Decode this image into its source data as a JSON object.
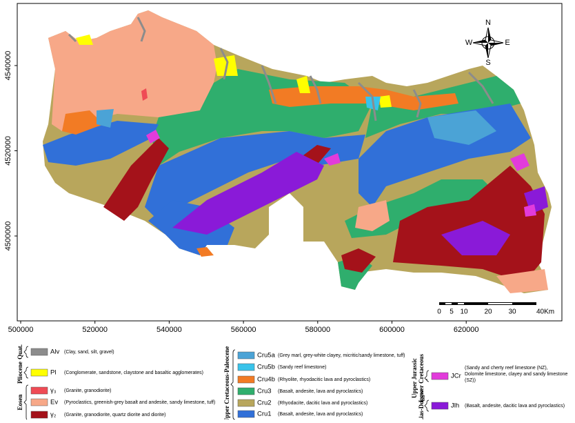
{
  "map": {
    "x_ticks": [
      500000,
      520000,
      540000,
      560000,
      580000,
      600000,
      620000
    ],
    "y_ticks": [
      4540000,
      4520000,
      4500000
    ],
    "compass": {
      "n": "N",
      "e": "E",
      "s": "S",
      "w": "W"
    },
    "scale_bar": {
      "labels": [
        "0",
        "5",
        "10",
        "20",
        "30",
        "40Km"
      ]
    }
  },
  "legend": {
    "groups": [
      {
        "label": "Quat.",
        "units": [
          {
            "code": "Alv",
            "color": "#8c8c8c",
            "description": "(Clay, sand, silt, gravel)"
          }
        ]
      },
      {
        "label": "Pliocene",
        "units": [
          {
            "code": "Pl",
            "color": "#ffff00",
            "description": "(Conglomerate, sandstone, claystone and basaltic agglomerates)"
          }
        ]
      },
      {
        "label": "Eosen",
        "units": [
          {
            "code": "γ₃",
            "color": "#ef4b55",
            "description": "(Granite, granodiorite)"
          },
          {
            "code": "Ev",
            "color": "#f7a888",
            "description": "(Pyroclastics, greenish-grey basalt and andesite, sandy limestone, tuff)"
          },
          {
            "code": "γ₂",
            "color": "#a4121a",
            "description": "(Granite, granodiorite, quartz diorite and diorite)"
          }
        ]
      },
      {
        "label": "Upper Cretaceous-Paleocene",
        "units": [
          {
            "code": "Cru5a",
            "color": "#4ba3d6",
            "description": "(Grey marl, grey-white clayey, micritic/sandy limestone, tuff)"
          },
          {
            "code": "Cru5b",
            "color": "#38c3ea",
            "description": "(Sandy reef limestone)"
          },
          {
            "code": "Cru4b",
            "color": "#f27b24",
            "description": "(Rhyolite, rhyodacitic lava and pyroclastics)"
          },
          {
            "code": "Cru3",
            "color": "#2fae6d",
            "description": "(Basalt, andesite, lava and pyroclastics)"
          },
          {
            "code": "Cru2",
            "color": "#b8a65c",
            "description": "(Rhyodacite, dacitic lava and pyroclastics)"
          },
          {
            "code": "Cru1",
            "color": "#3170d8",
            "description": "(Basalt, andesite, lava and pyroclastics)"
          }
        ]
      },
      {
        "label": [
          "Upper Jurassic",
          "Lower Cretaceous"
        ],
        "units": [
          {
            "code": "JCr",
            "color": "#e23bdb",
            "description": "(Sandy and cherty reef limestone (NZ), Dolomite limestone,  clayey and sandy limestone (SZ))"
          }
        ]
      },
      {
        "label": "Lias-Dogger",
        "units": [
          {
            "code": "Jlh",
            "color": "#8a1ad8",
            "description": "(Basalt, andesite, dacitic lava and pyroclastics)"
          }
        ]
      }
    ]
  }
}
